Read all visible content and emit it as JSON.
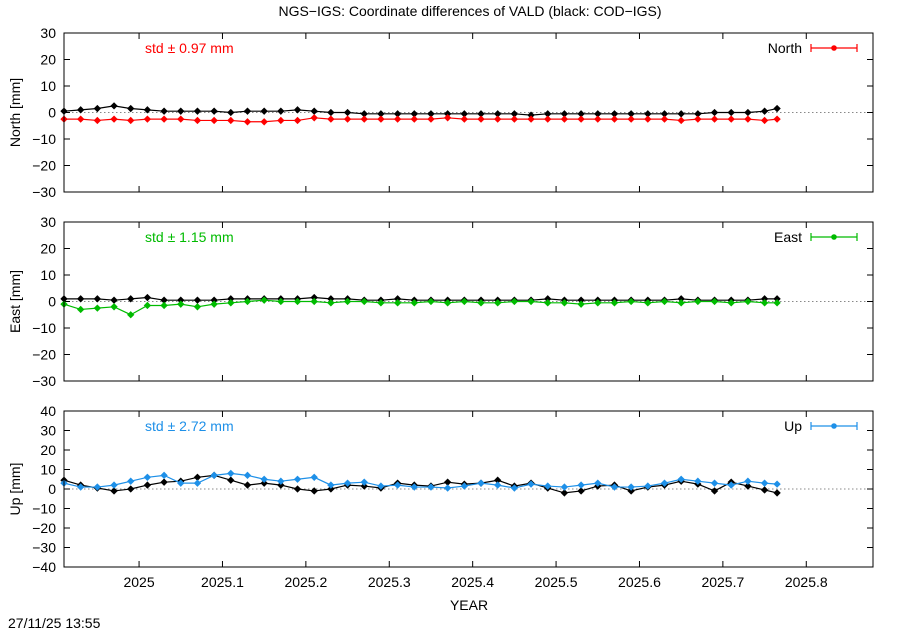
{
  "title": "NGS−IGS: Coordinate differences of VALD (black: COD−IGS)",
  "footer_timestamp": "27/11/25 13:55",
  "xlabel": "YEAR",
  "colors": {
    "reference": "#000000",
    "north": "#ff0000",
    "east": "#00bb00",
    "up": "#1e90e8",
    "zero_line": "#888888"
  },
  "chart_data": [
    {
      "type": "scatter",
      "panel": "north",
      "ylabel": "North [mm]",
      "ylim": [
        -30,
        30
      ],
      "yticks": [
        "30",
        "20",
        "10",
        "0",
        "−10",
        "−20",
        "−30"
      ],
      "ytick_values": [
        30,
        20,
        10,
        0,
        -10,
        -20,
        -30
      ],
      "xlim": [
        2024.91,
        2025.88
      ],
      "xticks": [
        "2025",
        "2025.1",
        "2025.2",
        "2025.3",
        "2025.4",
        "2025.5",
        "2025.6",
        "2025.7",
        "2025.8"
      ],
      "xtick_values": [
        2025.0,
        2025.1,
        2025.2,
        2025.3,
        2025.4,
        2025.5,
        2025.6,
        2025.7,
        2025.8
      ],
      "stat_label": "std ± 0.97 mm",
      "legend": {
        "label": "North",
        "position": "top-right"
      },
      "series": [
        {
          "name": "COD−IGS",
          "color": "#000000",
          "x": [
            2024.91,
            2024.93,
            2024.95,
            2024.97,
            2024.99,
            2025.01,
            2025.03,
            2025.05,
            2025.07,
            2025.09,
            2025.11,
            2025.13,
            2025.15,
            2025.17,
            2025.19,
            2025.21,
            2025.23,
            2025.25,
            2025.27,
            2025.29,
            2025.31,
            2025.33,
            2025.35,
            2025.37,
            2025.39,
            2025.41,
            2025.43,
            2025.45,
            2025.47,
            2025.49,
            2025.51,
            2025.53,
            2025.55,
            2025.57,
            2025.59,
            2025.61,
            2025.63,
            2025.65,
            2025.67,
            2025.69,
            2025.71,
            2025.73,
            2025.75,
            2025.765
          ],
          "y": [
            0.5,
            1.0,
            1.5,
            2.5,
            1.5,
            1.0,
            0.5,
            0.5,
            0.5,
            0.5,
            0.0,
            0.5,
            0.5,
            0.5,
            1.0,
            0.5,
            0.0,
            0.0,
            -0.5,
            -0.5,
            -0.5,
            -0.5,
            -0.5,
            -0.5,
            -0.5,
            -0.5,
            -0.5,
            -0.5,
            -1.0,
            -0.5,
            -0.5,
            -0.5,
            -0.5,
            -0.5,
            -0.5,
            -0.5,
            -0.5,
            -0.5,
            -0.5,
            0.0,
            0.0,
            0.0,
            0.5,
            1.5
          ]
        },
        {
          "name": "NGS−IGS",
          "color": "#ff0000",
          "x": [
            2024.91,
            2024.93,
            2024.95,
            2024.97,
            2024.99,
            2025.01,
            2025.03,
            2025.05,
            2025.07,
            2025.09,
            2025.11,
            2025.13,
            2025.15,
            2025.17,
            2025.19,
            2025.21,
            2025.23,
            2025.25,
            2025.27,
            2025.29,
            2025.31,
            2025.33,
            2025.35,
            2025.37,
            2025.39,
            2025.41,
            2025.43,
            2025.45,
            2025.47,
            2025.49,
            2025.51,
            2025.53,
            2025.55,
            2025.57,
            2025.59,
            2025.61,
            2025.63,
            2025.65,
            2025.67,
            2025.69,
            2025.71,
            2025.73,
            2025.75,
            2025.765
          ],
          "y": [
            -2.5,
            -2.5,
            -3.0,
            -2.5,
            -3.0,
            -2.5,
            -2.5,
            -2.5,
            -3.0,
            -3.0,
            -3.0,
            -3.5,
            -3.5,
            -3.0,
            -3.0,
            -2.0,
            -2.5,
            -2.5,
            -2.5,
            -2.5,
            -2.5,
            -2.5,
            -2.5,
            -2.0,
            -2.5,
            -2.5,
            -2.5,
            -2.5,
            -2.5,
            -2.5,
            -2.5,
            -2.5,
            -2.5,
            -2.5,
            -2.5,
            -2.5,
            -2.5,
            -3.0,
            -2.5,
            -2.5,
            -2.5,
            -2.5,
            -3.0,
            -2.5
          ]
        }
      ]
    },
    {
      "type": "scatter",
      "panel": "east",
      "ylabel": "East [mm]",
      "ylim": [
        -30,
        30
      ],
      "yticks": [
        "30",
        "20",
        "10",
        "0",
        "−10",
        "−20",
        "−30"
      ],
      "ytick_values": [
        30,
        20,
        10,
        0,
        -10,
        -20,
        -30
      ],
      "xlim": [
        2024.91,
        2025.88
      ],
      "xticks": [
        "2025",
        "2025.1",
        "2025.2",
        "2025.3",
        "2025.4",
        "2025.5",
        "2025.6",
        "2025.7",
        "2025.8"
      ],
      "xtick_values": [
        2025.0,
        2025.1,
        2025.2,
        2025.3,
        2025.4,
        2025.5,
        2025.6,
        2025.7,
        2025.8
      ],
      "stat_label": "std ± 1.15 mm",
      "legend": {
        "label": "East",
        "position": "top-right"
      },
      "series": [
        {
          "name": "COD−IGS",
          "color": "#000000",
          "x": [
            2024.91,
            2024.93,
            2024.95,
            2024.97,
            2024.99,
            2025.01,
            2025.03,
            2025.05,
            2025.07,
            2025.09,
            2025.11,
            2025.13,
            2025.15,
            2025.17,
            2025.19,
            2025.21,
            2025.23,
            2025.25,
            2025.27,
            2025.29,
            2025.31,
            2025.33,
            2025.35,
            2025.37,
            2025.39,
            2025.41,
            2025.43,
            2025.45,
            2025.47,
            2025.49,
            2025.51,
            2025.53,
            2025.55,
            2025.57,
            2025.59,
            2025.61,
            2025.63,
            2025.65,
            2025.67,
            2025.69,
            2025.71,
            2025.73,
            2025.75,
            2025.765
          ],
          "y": [
            1.0,
            1.0,
            1.0,
            0.5,
            1.0,
            1.5,
            0.5,
            0.5,
            0.5,
            0.5,
            1.0,
            1.0,
            1.0,
            1.0,
            1.0,
            1.5,
            1.0,
            1.0,
            0.5,
            0.5,
            1.0,
            0.5,
            0.5,
            0.5,
            0.5,
            0.5,
            0.5,
            0.5,
            0.5,
            1.0,
            0.5,
            0.5,
            0.5,
            0.5,
            0.5,
            0.5,
            0.5,
            1.0,
            0.5,
            0.5,
            0.5,
            0.5,
            1.0,
            1.0
          ]
        },
        {
          "name": "NGS−IGS",
          "color": "#00bb00",
          "x": [
            2024.91,
            2024.93,
            2024.95,
            2024.97,
            2024.99,
            2025.01,
            2025.03,
            2025.05,
            2025.07,
            2025.09,
            2025.11,
            2025.13,
            2025.15,
            2025.17,
            2025.19,
            2025.21,
            2025.23,
            2025.25,
            2025.27,
            2025.29,
            2025.31,
            2025.33,
            2025.35,
            2025.37,
            2025.39,
            2025.41,
            2025.43,
            2025.45,
            2025.47,
            2025.49,
            2025.51,
            2025.53,
            2025.55,
            2025.57,
            2025.59,
            2025.61,
            2025.63,
            2025.65,
            2025.67,
            2025.69,
            2025.71,
            2025.73,
            2025.75,
            2025.765
          ],
          "y": [
            -1.0,
            -3.0,
            -2.5,
            -2.0,
            -5.0,
            -1.5,
            -1.5,
            -1.0,
            -2.0,
            -1.0,
            -0.5,
            0.0,
            0.5,
            0.0,
            0.0,
            0.0,
            -0.5,
            0.0,
            0.0,
            -0.5,
            -0.5,
            -0.5,
            0.0,
            -0.5,
            0.0,
            -0.5,
            -0.5,
            0.0,
            0.0,
            -0.5,
            -0.5,
            -1.0,
            -0.5,
            -0.5,
            0.0,
            -0.5,
            0.0,
            -0.5,
            0.0,
            0.0,
            -0.5,
            0.0,
            -0.5,
            -0.5
          ]
        }
      ]
    },
    {
      "type": "scatter",
      "panel": "up",
      "ylabel": "Up [mm]",
      "ylim": [
        -40,
        40
      ],
      "yticks": [
        "40",
        "30",
        "20",
        "10",
        "0",
        "−10",
        "−20",
        "−30",
        "−40"
      ],
      "ytick_values": [
        40,
        30,
        20,
        10,
        0,
        -10,
        -20,
        -30,
        -40
      ],
      "xlim": [
        2024.91,
        2025.88
      ],
      "xticks": [
        "2025",
        "2025.1",
        "2025.2",
        "2025.3",
        "2025.4",
        "2025.5",
        "2025.6",
        "2025.7",
        "2025.8"
      ],
      "xtick_values": [
        2025.0,
        2025.1,
        2025.2,
        2025.3,
        2025.4,
        2025.5,
        2025.6,
        2025.7,
        2025.8
      ],
      "stat_label": "std ± 2.72 mm",
      "legend": {
        "label": "Up",
        "position": "top-right"
      },
      "series": [
        {
          "name": "COD−IGS",
          "color": "#000000",
          "x": [
            2024.91,
            2024.93,
            2024.95,
            2024.97,
            2024.99,
            2025.01,
            2025.03,
            2025.05,
            2025.07,
            2025.09,
            2025.11,
            2025.13,
            2025.15,
            2025.17,
            2025.19,
            2025.21,
            2025.23,
            2025.25,
            2025.27,
            2025.29,
            2025.31,
            2025.33,
            2025.35,
            2025.37,
            2025.39,
            2025.41,
            2025.43,
            2025.45,
            2025.47,
            2025.49,
            2025.51,
            2025.53,
            2025.55,
            2025.57,
            2025.59,
            2025.61,
            2025.63,
            2025.65,
            2025.67,
            2025.69,
            2025.71,
            2025.73,
            2025.75,
            2025.765
          ],
          "y": [
            4.5,
            2.0,
            0.5,
            -1.0,
            0.0,
            2.0,
            3.5,
            4.0,
            6.0,
            7.0,
            4.5,
            2.0,
            3.0,
            2.0,
            0.0,
            -1.0,
            0.0,
            2.0,
            1.5,
            0.5,
            3.0,
            2.0,
            1.5,
            3.5,
            2.5,
            3.0,
            4.5,
            1.5,
            3.0,
            0.5,
            -2.0,
            -1.0,
            1.5,
            2.0,
            -1.0,
            1.0,
            2.0,
            4.0,
            2.5,
            -1.0,
            3.5,
            1.5,
            -0.5,
            -2.0
          ]
        },
        {
          "name": "NGS−IGS",
          "color": "#1e90e8",
          "x": [
            2024.91,
            2024.93,
            2024.95,
            2024.97,
            2024.99,
            2025.01,
            2025.03,
            2025.05,
            2025.07,
            2025.09,
            2025.11,
            2025.13,
            2025.15,
            2025.17,
            2025.19,
            2025.21,
            2025.23,
            2025.25,
            2025.27,
            2025.29,
            2025.31,
            2025.33,
            2025.35,
            2025.37,
            2025.39,
            2025.41,
            2025.43,
            2025.45,
            2025.47,
            2025.49,
            2025.51,
            2025.53,
            2025.55,
            2025.57,
            2025.59,
            2025.61,
            2025.63,
            2025.65,
            2025.67,
            2025.69,
            2025.71,
            2025.73,
            2025.75,
            2025.765
          ],
          "y": [
            3.0,
            1.0,
            1.0,
            2.0,
            4.0,
            6.0,
            7.0,
            3.0,
            3.0,
            7.0,
            8.0,
            7.0,
            5.0,
            4.0,
            5.0,
            6.0,
            2.0,
            3.0,
            3.5,
            1.5,
            2.0,
            1.0,
            1.0,
            0.5,
            1.5,
            3.0,
            2.0,
            0.5,
            2.5,
            1.5,
            1.0,
            2.0,
            3.0,
            1.0,
            1.0,
            1.5,
            3.0,
            5.0,
            4.0,
            3.0,
            2.0,
            4.0,
            3.0,
            2.5
          ]
        }
      ]
    }
  ]
}
